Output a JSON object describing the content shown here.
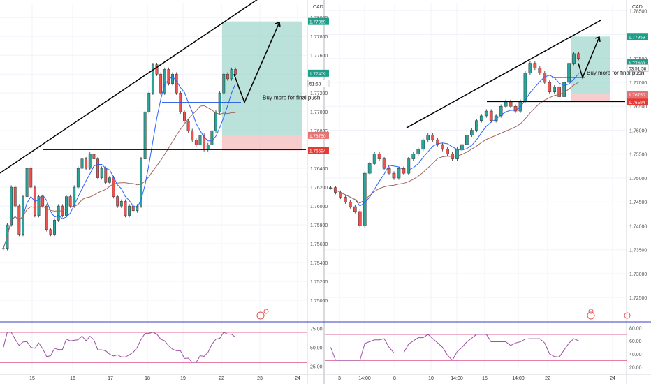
{
  "chart_data": [
    {
      "type": "candlestick",
      "panel": "left",
      "currency": "CAD",
      "ylim": [
        1.748,
        1.7815
      ],
      "y_ticks": [
        "1.78000",
        "1.77800",
        "1.77600",
        "1.77400",
        "1.77200",
        "1.77000",
        "1.76800",
        "1.76600",
        "1.76400",
        "1.76200",
        "1.76000",
        "1.75800",
        "1.75600",
        "1.75400",
        "1.75200",
        "1.75000"
      ],
      "x_ticks": [
        "15",
        "16",
        "17",
        "18",
        "19",
        "22",
        "23",
        "24"
      ],
      "price_badges": [
        {
          "text": "1.77959",
          "color": "#1f9e89"
        },
        {
          "text": "1.77409",
          "color": "#1f9e89"
        },
        {
          "text": "51:58",
          "color": "#ffffff"
        },
        {
          "text": "1.76750",
          "color": "#e57373"
        },
        {
          "text": "1.76594",
          "color": "#e53935"
        }
      ],
      "annotation": "Buy more for final push",
      "levels": {
        "support": 1.766,
        "entry_line": 1.771,
        "position_top": 1.7796,
        "position_entry": 1.7675,
        "position_stop": 1.7659
      },
      "trendline": {
        "from": [
          0,
          1.7635
        ],
        "to": [
          1,
          1.7825
        ]
      },
      "projection": [
        1.774,
        1.771,
        1.7795
      ],
      "close_series": [
        1.7555,
        1.758,
        1.762,
        1.76,
        1.757,
        1.761,
        1.764,
        1.762,
        1.759,
        1.761,
        1.76,
        1.7575,
        1.757,
        1.7585,
        1.76,
        1.759,
        1.761,
        1.76,
        1.762,
        1.764,
        1.765,
        1.764,
        1.7655,
        1.765,
        1.763,
        1.764,
        1.7625,
        1.763,
        1.761,
        1.76,
        1.7605,
        1.759,
        1.76,
        1.7595,
        1.76,
        1.765,
        1.77,
        1.772,
        1.775,
        1.774,
        1.772,
        1.7745,
        1.773,
        1.774,
        1.772,
        1.77,
        1.769,
        1.768,
        1.767,
        1.7665,
        1.7675,
        1.766,
        1.7665,
        1.768,
        1.77,
        1.772,
        1.774,
        1.7735,
        1.7745,
        1.774
      ],
      "rsi": {
        "levels": [
          "75.00",
          "50.00",
          "25.00"
        ],
        "overbought": 70,
        "oversold": 30,
        "range": [
          20,
          80
        ]
      }
    },
    {
      "type": "candlestick",
      "panel": "right",
      "currency": "CAD",
      "ylim": [
        1.7205,
        1.7865
      ],
      "y_ticks": [
        "1.78500",
        "1.78000",
        "1.77500",
        "1.77000",
        "1.76500",
        "1.76000",
        "1.75500",
        "1.75000",
        "1.74500",
        "1.74000",
        "1.73500",
        "1.73000",
        "1.72500"
      ],
      "x_ticks": [
        "3",
        "14:00",
        "8",
        "10",
        "14:00",
        "15",
        "14:00",
        "22",
        "24"
      ],
      "price_badges": [
        {
          "text": "1.77959",
          "color": "#1f9e89"
        },
        {
          "text": "1.77409",
          "color": "#1f9e89"
        },
        {
          "text": "03:51:58",
          "color": "#ffffff"
        },
        {
          "text": "1.76750",
          "color": "#e57373"
        },
        {
          "text": "1.76594",
          "color": "#e53935"
        }
      ],
      "annotation": "Buy more for final push",
      "levels": {
        "support": 1.766,
        "entry_line": 1.771,
        "position_top": 1.7796,
        "position_entry": 1.7675,
        "position_stop": 1.7659
      },
      "trendline": {
        "from": [
          0.3,
          1.7605
        ],
        "to": [
          1,
          1.783
        ]
      },
      "projection": [
        1.774,
        1.771,
        1.7795
      ],
      "close_series": [
        1.748,
        1.747,
        1.746,
        1.745,
        1.744,
        1.743,
        1.74,
        1.751,
        1.753,
        1.755,
        1.754,
        1.752,
        1.751,
        1.75,
        1.752,
        1.751,
        1.754,
        1.755,
        1.756,
        1.758,
        1.759,
        1.758,
        1.757,
        1.756,
        1.755,
        1.754,
        1.756,
        1.757,
        1.759,
        1.76,
        1.762,
        1.763,
        1.764,
        1.762,
        1.763,
        1.765,
        1.766,
        1.765,
        1.764,
        1.766,
        1.772,
        1.774,
        1.773,
        1.772,
        1.77,
        1.768,
        1.769,
        1.767,
        1.77,
        1.774,
        1.776,
        1.775
      ],
      "rsi": {
        "levels": [
          "80.00",
          "60.00",
          "40.00",
          "20.00"
        ],
        "overbought": 70,
        "oversold": 30,
        "range": [
          15,
          85
        ]
      }
    }
  ]
}
